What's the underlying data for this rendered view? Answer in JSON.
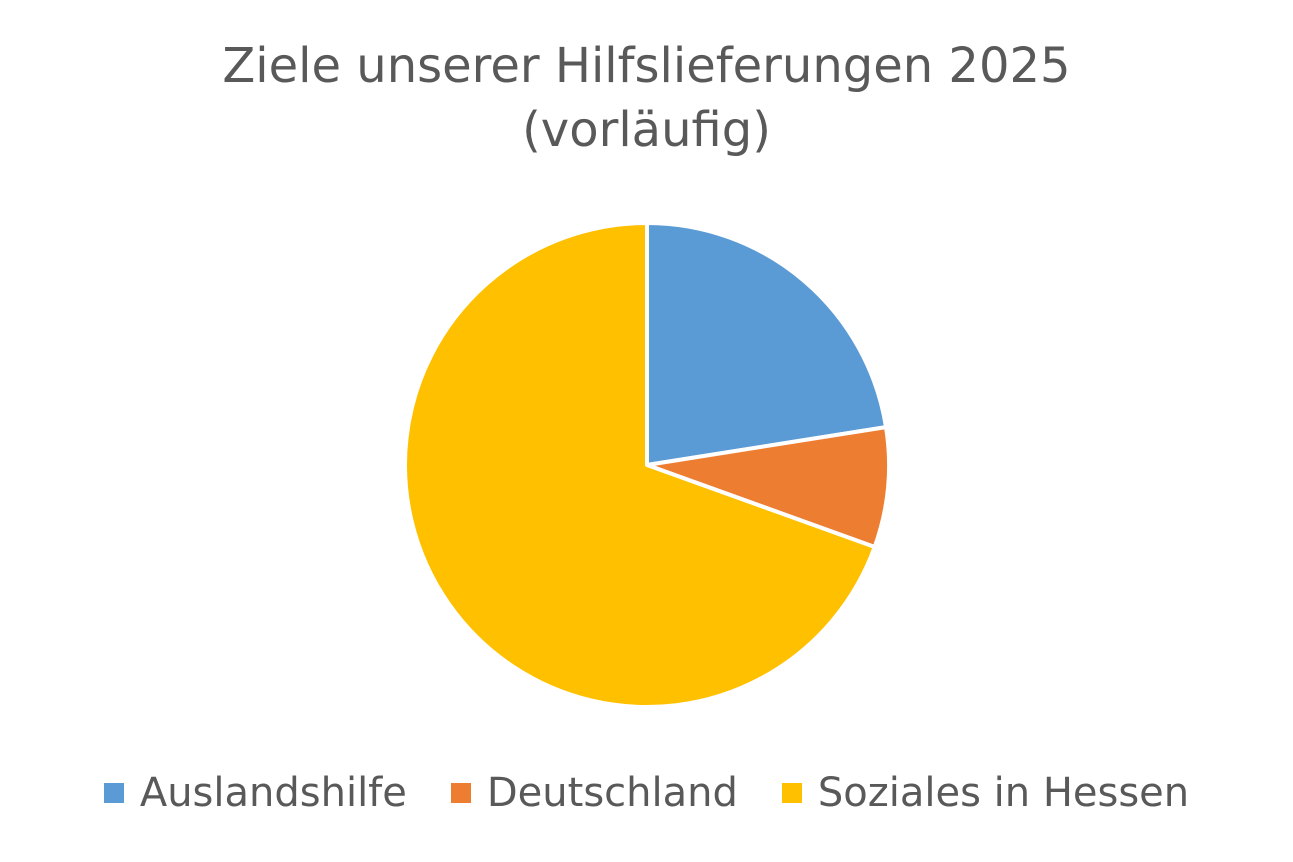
{
  "chart_data": {
    "type": "pie",
    "title": "Ziele unserer Hilfslieferungen 2025",
    "subtitle": "(vorläufig)",
    "categories": [
      "Auslandshilfe",
      "Deutschland",
      "Soziales in Hessen"
    ],
    "values": [
      22.5,
      8.0,
      69.5
    ],
    "colors": [
      "#5B9BD5",
      "#ED7D31",
      "#FFC000"
    ],
    "legend_position": "bottom"
  }
}
